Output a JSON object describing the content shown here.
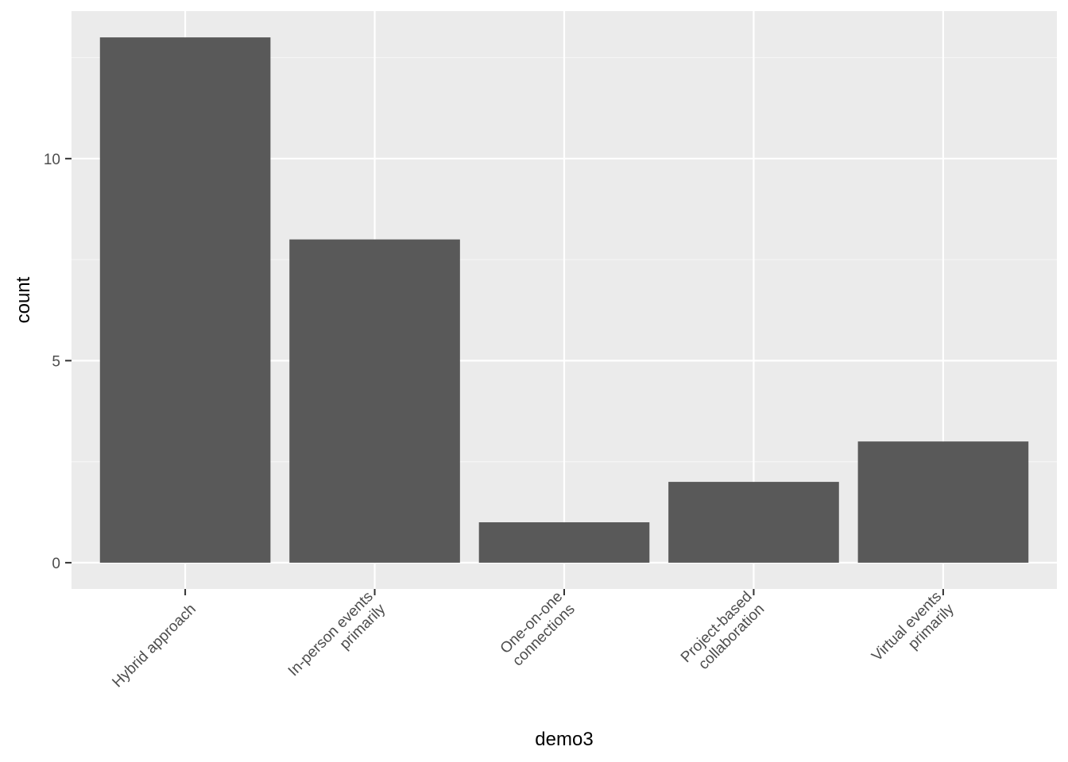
{
  "colors": {
    "panel_background": "#ebebeb",
    "grid_major": "#ffffff",
    "grid_minor": "#f5f5f5",
    "bar_fill": "#595959",
    "tick_color": "#333333",
    "tick_label_color": "#4d4d4d"
  },
  "chart_data": {
    "type": "bar",
    "categories": [
      [
        "Hybrid approach"
      ],
      [
        "In-person events",
        "primarily"
      ],
      [
        "One-on-one",
        "connections"
      ],
      [
        "Project-based",
        "collaboration"
      ],
      [
        "Virtual events",
        "primarily"
      ]
    ],
    "values": [
      13,
      8,
      1,
      2,
      3
    ],
    "title": "",
    "xlabel": "demo3",
    "ylabel": "count",
    "ylim": [
      -0.65,
      13.65
    ],
    "yticks": [
      0,
      5,
      10
    ],
    "yticks_minor": [
      2.5,
      7.5,
      12.5
    ],
    "y_tick_labels": [
      "0",
      "5",
      "10"
    ],
    "grid": true,
    "legend": "none",
    "x_tick_label_rotation_deg": -45
  }
}
